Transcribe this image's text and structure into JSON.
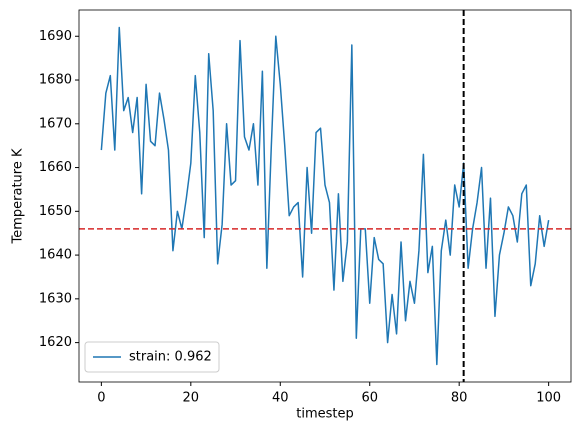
{
  "chart_data": {
    "type": "line",
    "xlabel": "timestep",
    "ylabel": "Temperature K",
    "x": [
      0,
      1,
      2,
      3,
      4,
      5,
      6,
      7,
      8,
      9,
      10,
      11,
      12,
      13,
      14,
      15,
      16,
      17,
      18,
      19,
      20,
      21,
      22,
      23,
      24,
      25,
      26,
      27,
      28,
      29,
      30,
      31,
      32,
      33,
      34,
      35,
      36,
      37,
      38,
      39,
      40,
      41,
      42,
      43,
      44,
      45,
      46,
      47,
      48,
      49,
      50,
      51,
      52,
      53,
      54,
      55,
      56,
      57,
      58,
      59,
      60,
      61,
      62,
      63,
      64,
      65,
      66,
      67,
      68,
      69,
      70,
      71,
      72,
      73,
      74,
      75,
      76,
      77,
      78,
      79,
      80,
      81,
      82,
      83,
      84,
      85,
      86,
      87,
      88,
      89,
      90,
      91,
      92,
      93,
      94,
      95,
      96,
      97,
      98,
      99,
      100
    ],
    "series": [
      {
        "name": "strain: 0.962",
        "color": "#1f77b4",
        "values": [
          1664,
          1677,
          1681,
          1664,
          1692,
          1673,
          1676,
          1668,
          1676,
          1654,
          1679,
          1666,
          1665,
          1677,
          1671,
          1664,
          1641,
          1650,
          1646,
          1653,
          1661,
          1681,
          1668,
          1644,
          1686,
          1673,
          1638,
          1647,
          1670,
          1656,
          1657,
          1689,
          1667,
          1664,
          1670,
          1656,
          1682,
          1637,
          1665,
          1690,
          1679,
          1665,
          1649,
          1651,
          1652,
          1635,
          1660,
          1645,
          1668,
          1669,
          1656,
          1652,
          1632,
          1654,
          1634,
          1643,
          1688,
          1621,
          1646,
          1646,
          1629,
          1644,
          1639,
          1638,
          1620,
          1631,
          1622,
          1643,
          1625,
          1634,
          1629,
          1641,
          1663,
          1636,
          1642,
          1615,
          1641,
          1648,
          1640,
          1656,
          1651,
          1661,
          1637,
          1646,
          1652,
          1660,
          1637,
          1653,
          1626,
          1640,
          1645,
          1651,
          1649,
          1643,
          1654,
          1656,
          1633,
          1638,
          1649,
          1642,
          1648
        ]
      }
    ],
    "xlim": [
      -5,
      105
    ],
    "xticks": [
      0,
      20,
      40,
      60,
      80,
      100
    ],
    "ylim": [
      1611,
      1696
    ],
    "yticks": [
      1620,
      1630,
      1640,
      1650,
      1660,
      1670,
      1680,
      1690
    ],
    "hline": 1646,
    "hline_color": "#d62728",
    "vline": 81,
    "vline_color": "#000000",
    "legend": "lower left"
  }
}
